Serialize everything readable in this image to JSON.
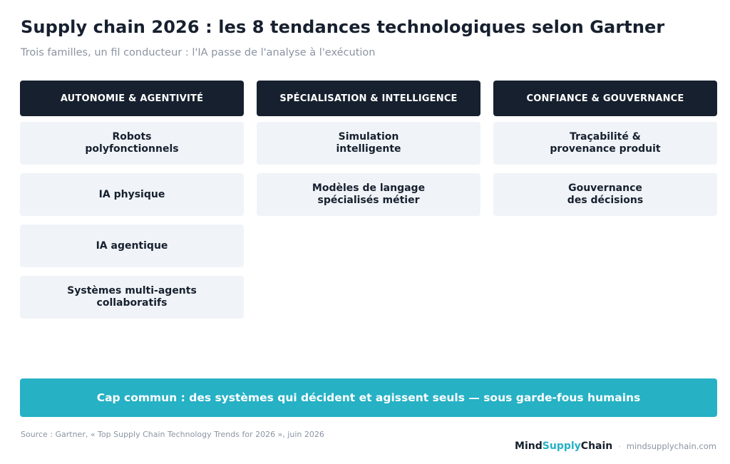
{
  "title": "Supply chain 2026 : les 8 tendances technologiques selon Gartner",
  "subtitle": "Trois familles, un fil conducteur : l'IA passe de l'analyse à l'exécution",
  "columns": [
    {
      "heading": "AUTONOMIE & AGENTIVITÉ",
      "items": [
        "Robots\npolyfonctionnels",
        "IA physique",
        "IA agentique",
        "Systèmes multi-agents\ncollaboratifs"
      ]
    },
    {
      "heading": "SPÉCIALISATION & INTELLIGENCE",
      "items": [
        "Simulation\nintelligente",
        "Modèles de langage\nspécialisés métier"
      ]
    },
    {
      "heading": "CONFIANCE & GOUVERNANCE",
      "items": [
        "Traçabilité &\nprovenance produit",
        "Gouvernance\ndes décisions"
      ]
    }
  ],
  "banner": "Cap commun : des systèmes qui décident et agissent seuls — sous garde-fous humains",
  "source": "Source : Gartner, « Top Supply Chain Technology Trends for 2026 », juin 2026",
  "footer": {
    "brand_part1": "Mind",
    "brand_part2": "Supply",
    "brand_part3": "Chain",
    "separator": "·",
    "site": "mindsupplychain.com"
  },
  "colors": {
    "dark": "#16202e",
    "accent": "#26b1c5",
    "card_bg": "#f0f4f8",
    "muted": "#8b94a2"
  }
}
